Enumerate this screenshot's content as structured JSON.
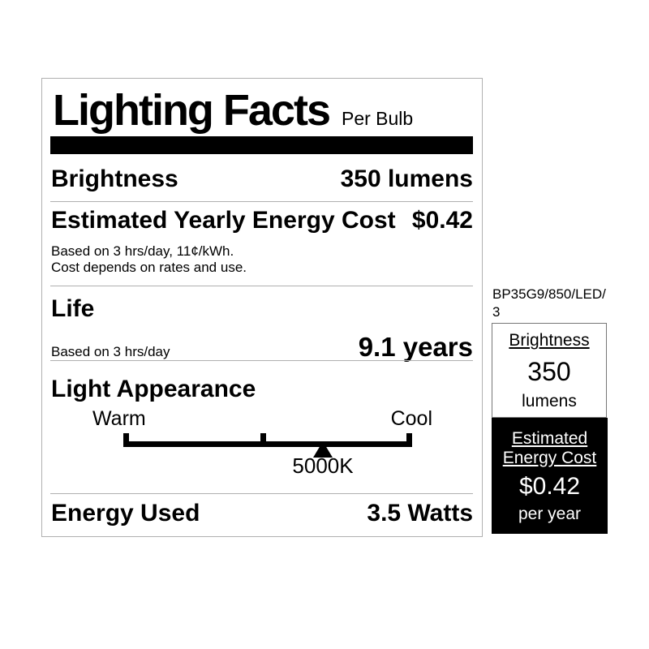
{
  "label": {
    "title": "Lighting Facts",
    "subtitle": "Per Bulb",
    "brightness": {
      "name": "Brightness",
      "value": "350 lumens"
    },
    "energy_cost": {
      "name": "Estimated Yearly Energy Cost",
      "value": "$0.42",
      "note_line1": "Based on 3 hrs/day, 11¢/kWh.",
      "note_line2": "Cost depends on rates and use."
    },
    "life": {
      "name": "Life",
      "note": "Based on 3 hrs/day",
      "value": "9.1 years"
    },
    "light_appearance": {
      "name": "Light Appearance",
      "warm_label": "Warm",
      "cool_label": "Cool",
      "kelvin": "5000K",
      "marker_position_pct": 69
    },
    "energy_used": {
      "name": "Energy Used",
      "value": "3.5 Watts"
    }
  },
  "side_panel": {
    "model_number": "BP35G9/850/LED/3",
    "brightness_box": {
      "heading": "Brightness",
      "value": "350",
      "unit": "lumens"
    },
    "energy_box": {
      "heading_line1": "Estimated",
      "heading_line2": "Energy Cost",
      "value": "$0.42",
      "unit": "per year"
    }
  },
  "colors": {
    "label_border": "#b0b0b0",
    "divider": "#b0b0b0",
    "title_rule": "#000000",
    "inverse_box_bg": "#000000",
    "inverse_box_text": "#ffffff"
  }
}
